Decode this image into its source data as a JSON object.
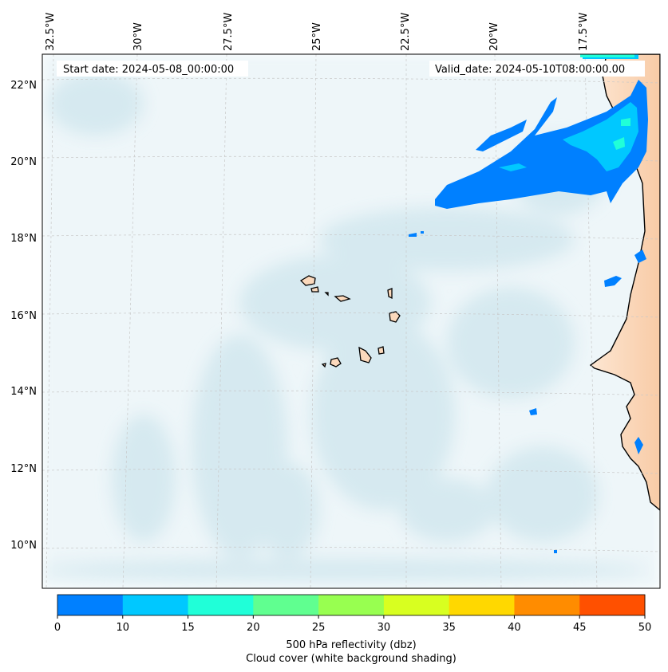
{
  "header": {
    "start_date": "Start date: 2024-05-08_00:00:00",
    "valid_date": "Valid_date: 2024-05-10T08:00:00.00"
  },
  "axes": {
    "lon_labels": [
      "32.5°W",
      "30°W",
      "27.5°W",
      "25°W",
      "22.5°W",
      "20°W",
      "17.5°W"
    ],
    "lat_labels": [
      "22°N",
      "20°N",
      "18°N",
      "16°N",
      "14°N",
      "12°N",
      "10°N"
    ]
  },
  "colorbar": {
    "ticks": [
      "0",
      "10",
      "15",
      "20",
      "25",
      "30",
      "35",
      "40",
      "45",
      "50"
    ],
    "colors": [
      "#0080ff",
      "#00c8ff",
      "#20ffd8",
      "#60ff90",
      "#98ff50",
      "#d8ff20",
      "#ffd800",
      "#ff8c00",
      "#ff5000"
    ],
    "label_line1": "500 hPa reflectivity (dbz)",
    "label_line2": "Cloud cover (white background shading)"
  },
  "legend_colors": {
    "ocean_cloud": "#d4e9f0",
    "land": "#fbd9bc",
    "coast": "#000000"
  }
}
